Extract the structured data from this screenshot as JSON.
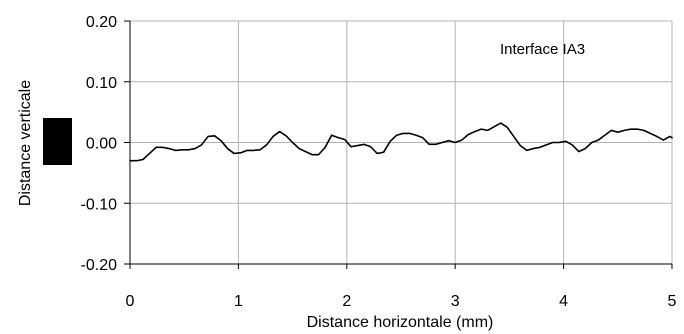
{
  "chart_data": {
    "type": "line",
    "title": "",
    "xlabel": "Distance horizontale  (mm)",
    "ylabel": "Distance verticale",
    "annotation": "Interface IA3",
    "xlim": [
      0,
      5
    ],
    "ylim": [
      -0.2,
      0.2
    ],
    "x_ticks": [
      0,
      1,
      2,
      3,
      4,
      5
    ],
    "y_ticks": [
      0.2,
      0.1,
      0.0,
      -0.1,
      -0.2
    ],
    "x_tick_labels": [
      "0",
      "1",
      "2",
      "3",
      "4",
      "5"
    ],
    "y_tick_labels": [
      "0.20",
      "0.10",
      "0.00",
      "-0.10",
      "-0.20"
    ],
    "grid": true,
    "legend": "none",
    "colors": {
      "line": "#000000",
      "grid": "#b3b3b3",
      "axis": "#000000",
      "ylabel_marker": "#000000"
    },
    "series": [
      {
        "x": [
          0.0,
          0.06,
          0.12,
          0.18,
          0.24,
          0.3,
          0.36,
          0.42,
          0.48,
          0.54,
          0.6,
          0.66,
          0.72,
          0.78,
          0.84,
          0.9,
          0.96,
          1.02,
          1.08,
          1.14,
          1.2,
          1.26,
          1.32,
          1.38,
          1.44,
          1.5,
          1.56,
          1.62,
          1.68,
          1.74,
          1.8,
          1.86,
          1.92,
          1.98,
          2.04,
          2.1,
          2.16,
          2.22,
          2.28,
          2.34,
          2.4,
          2.46,
          2.52,
          2.58,
          2.64,
          2.7,
          2.76,
          2.82,
          2.88,
          2.94,
          3.0,
          3.06,
          3.12,
          3.18,
          3.24,
          3.3,
          3.36,
          3.42,
          3.48,
          3.54,
          3.6,
          3.66,
          3.72,
          3.78,
          3.84,
          3.9,
          3.96,
          4.02,
          4.08,
          4.14,
          4.2,
          4.26,
          4.32,
          4.38,
          4.44,
          4.5,
          4.56,
          4.62,
          4.68,
          4.74,
          4.8,
          4.86,
          4.92,
          4.98,
          5.0
        ],
        "y": [
          -0.03,
          -0.03,
          -0.028,
          -0.018,
          -0.008,
          -0.008,
          -0.01,
          -0.013,
          -0.012,
          -0.012,
          -0.01,
          -0.004,
          0.01,
          0.011,
          0.003,
          -0.01,
          -0.018,
          -0.017,
          -0.013,
          -0.013,
          -0.012,
          -0.004,
          0.01,
          0.018,
          0.011,
          0.0,
          -0.01,
          -0.015,
          -0.02,
          -0.02,
          -0.008,
          0.012,
          0.008,
          0.005,
          -0.007,
          -0.005,
          -0.003,
          -0.007,
          -0.018,
          -0.016,
          0.002,
          0.012,
          0.015,
          0.015,
          0.012,
          0.008,
          -0.003,
          -0.003,
          0.0,
          0.003,
          0.0,
          0.004,
          0.013,
          0.018,
          0.022,
          0.02,
          0.026,
          0.032,
          0.025,
          0.01,
          -0.005,
          -0.013,
          -0.01,
          -0.008,
          -0.004,
          0.0,
          0.0,
          0.002,
          -0.004,
          -0.015,
          -0.01,
          0.0,
          0.004,
          0.012,
          0.02,
          0.017,
          0.02,
          0.022,
          0.022,
          0.02,
          0.015,
          0.01,
          0.004,
          0.01,
          0.008
        ]
      }
    ]
  }
}
